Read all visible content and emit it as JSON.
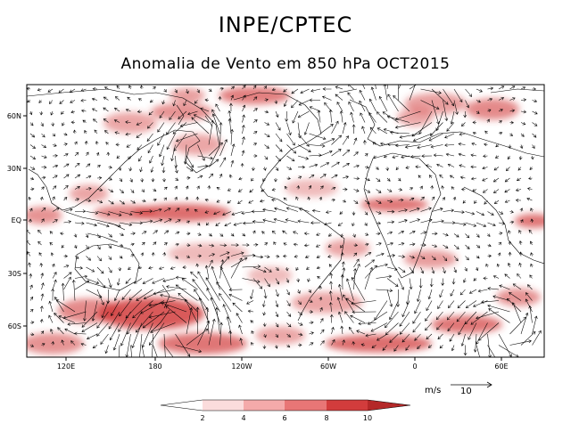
{
  "header": {
    "title": "INPE/CPTEC",
    "subtitle": "Anomalia de Vento em 850 hPa OCT2015"
  },
  "map": {
    "lon_ticks": [
      "120E",
      "180",
      "120W",
      "60W",
      "0",
      "60E"
    ],
    "lat_ticks": [
      "60N",
      "30N",
      "EQ",
      "30S",
      "60S"
    ],
    "fill_color": "#d23c3c",
    "arrow_color": "#000000",
    "coast_color": "#000000"
  },
  "reference_vector": {
    "unit_label": "m/s",
    "magnitude_label": "10"
  },
  "colorbar": {
    "labels": [
      "2",
      "4",
      "6",
      "8",
      "10"
    ],
    "colors": [
      "#ffffff",
      "#fbdcdc",
      "#f4aaaa",
      "#e87676",
      "#d23c3c",
      "#b42828"
    ]
  }
}
